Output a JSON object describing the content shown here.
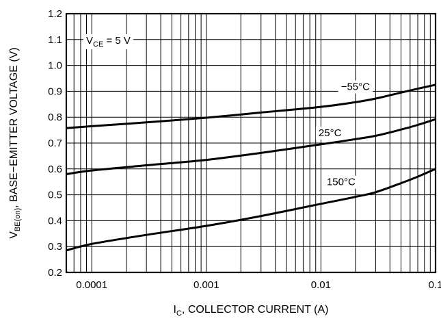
{
  "chart_data": {
    "type": "line",
    "x_scale": "log",
    "xlim": [
      6e-05,
      0.1
    ],
    "ylim": [
      0.2,
      1.2
    ],
    "grid": true,
    "xlabel": {
      "main": "I",
      "sub": "C",
      "rest": ", COLLECTOR CURRENT (A)"
    },
    "ylabel": {
      "main": "V",
      "sub": "BE(on)",
      "rest": ", BASE−EMITTER VOLTAGE (V)"
    },
    "x_ticks": [
      {
        "value": 0.0001,
        "label": "0.0001"
      },
      {
        "value": 0.001,
        "label": "0.001"
      },
      {
        "value": 0.01,
        "label": "0.01"
      },
      {
        "value": 0.1,
        "label": "0.1"
      }
    ],
    "y_ticks": [
      {
        "value": 0.2,
        "label": "0.2"
      },
      {
        "value": 0.3,
        "label": "0.3"
      },
      {
        "value": 0.4,
        "label": "0.4"
      },
      {
        "value": 0.5,
        "label": "0.5"
      },
      {
        "value": 0.6,
        "label": "0.6"
      },
      {
        "value": 0.7,
        "label": "0.7"
      },
      {
        "value": 0.8,
        "label": "0.8"
      },
      {
        "value": 0.9,
        "label": "0.9"
      },
      {
        "value": 1.0,
        "label": "1.0"
      },
      {
        "value": 1.1,
        "label": "1.1"
      },
      {
        "value": 1.2,
        "label": "1.2"
      }
    ],
    "condition": {
      "main": "V",
      "sub": "CE",
      "rest": " = 5 V"
    },
    "series": [
      {
        "name": "−55°C",
        "label_at": [
          0.02,
          0.918
        ],
        "x": [
          6e-05,
          0.0001,
          0.0003,
          0.001,
          0.003,
          0.01,
          0.02,
          0.03,
          0.05,
          0.07,
          0.1
        ],
        "y": [
          0.758,
          0.765,
          0.78,
          0.798,
          0.818,
          0.84,
          0.858,
          0.872,
          0.895,
          0.91,
          0.925
        ]
      },
      {
        "name": "25°C",
        "label_at": [
          0.012,
          0.74
        ],
        "x": [
          6e-05,
          0.0001,
          0.0003,
          0.001,
          0.003,
          0.01,
          0.02,
          0.03,
          0.05,
          0.07,
          0.1
        ],
        "y": [
          0.58,
          0.594,
          0.614,
          0.635,
          0.662,
          0.695,
          0.715,
          0.728,
          0.752,
          0.77,
          0.792
        ]
      },
      {
        "name": "150°C",
        "label_at": [
          0.015,
          0.55
        ],
        "x": [
          6e-05,
          0.0001,
          0.0003,
          0.001,
          0.003,
          0.01,
          0.02,
          0.03,
          0.05,
          0.07,
          0.1
        ],
        "y": [
          0.285,
          0.31,
          0.345,
          0.38,
          0.418,
          0.465,
          0.492,
          0.51,
          0.545,
          0.57,
          0.6
        ]
      }
    ]
  }
}
